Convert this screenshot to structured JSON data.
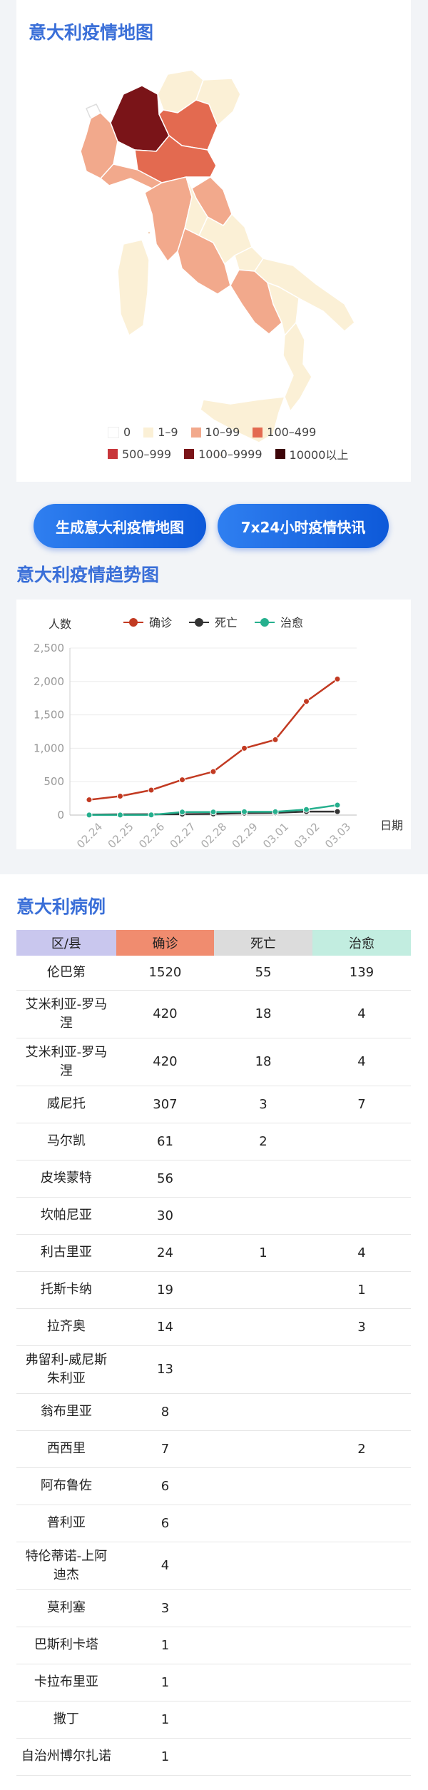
{
  "map_section": {
    "title": "意大利疫情地图",
    "legend": [
      {
        "label": "0",
        "color": "#ffffff"
      },
      {
        "label": "1–9",
        "color": "#fbf0d6"
      },
      {
        "label": "10–99",
        "color": "#f2a98c"
      },
      {
        "label": "100–499",
        "color": "#e36a50"
      },
      {
        "label": "500–999",
        "color": "#c8363a"
      },
      {
        "label": "1000–9999",
        "color": "#7a1418"
      },
      {
        "label": "10000以上",
        "color": "#3d0509"
      }
    ]
  },
  "buttons": {
    "map_button": "生成意大利疫情地图",
    "news_button": "7x24小时疫情快讯"
  },
  "trend_section": {
    "title": "意大利疫情趋势图"
  },
  "chart_data": {
    "type": "line",
    "ylabel": "人数",
    "xlabel": "日期",
    "categories": [
      "02.24",
      "02.25",
      "02.26",
      "02.27",
      "02.28",
      "02.29",
      "03.01",
      "03.02",
      "03.03"
    ],
    "ylim": [
      0,
      2500
    ],
    "yticks": [
      "2,500",
      "2,000",
      "1,500",
      "1,000",
      "500",
      "0"
    ],
    "legend_position": "top",
    "series": [
      {
        "name": "确诊",
        "color": "#c23a22",
        "values": [
          229,
          283,
          374,
          528,
          650,
          1000,
          1128,
          1701,
          2036
        ]
      },
      {
        "name": "死亡",
        "color": "#333333",
        "values": [
          7,
          11,
          12,
          14,
          17,
          29,
          34,
          52,
          52
        ]
      },
      {
        "name": "治愈",
        "color": "#26b08e",
        "values": [
          1,
          1,
          3,
          45,
          46,
          50,
          50,
          83,
          149
        ]
      }
    ]
  },
  "cases_section": {
    "title": "意大利病例",
    "headers": {
      "region": "区/县",
      "confirmed": "确诊",
      "deaths": "死亡",
      "cured": "治愈"
    },
    "header_colors": {
      "region": "#c9c7ee",
      "confirmed": "#f08c6f",
      "deaths": "#dcdcdc",
      "cured": "#c2ede0"
    },
    "rows": [
      {
        "region": "伦巴第",
        "confirmed": "1520",
        "deaths": "55",
        "cured": "139"
      },
      {
        "region": "艾米利亚-罗马涅",
        "confirmed": "420",
        "deaths": "18",
        "cured": "4"
      },
      {
        "region": "艾米利亚-罗马涅",
        "confirmed": "420",
        "deaths": "18",
        "cured": "4"
      },
      {
        "region": "威尼托",
        "confirmed": "307",
        "deaths": "3",
        "cured": "7"
      },
      {
        "region": "马尔凯",
        "confirmed": "61",
        "deaths": "2",
        "cured": ""
      },
      {
        "region": "皮埃蒙特",
        "confirmed": "56",
        "deaths": "",
        "cured": ""
      },
      {
        "region": "坎帕尼亚",
        "confirmed": "30",
        "deaths": "",
        "cured": ""
      },
      {
        "region": "利古里亚",
        "confirmed": "24",
        "deaths": "1",
        "cured": "4"
      },
      {
        "region": "托斯卡纳",
        "confirmed": "19",
        "deaths": "",
        "cured": "1"
      },
      {
        "region": "拉齐奥",
        "confirmed": "14",
        "deaths": "",
        "cured": "3"
      },
      {
        "region": "弗留利-威尼斯朱利亚",
        "confirmed": "13",
        "deaths": "",
        "cured": ""
      },
      {
        "region": "翁布里亚",
        "confirmed": "8",
        "deaths": "",
        "cured": ""
      },
      {
        "region": "西西里",
        "confirmed": "7",
        "deaths": "",
        "cured": "2"
      },
      {
        "region": "阿布鲁佐",
        "confirmed": "6",
        "deaths": "",
        "cured": ""
      },
      {
        "region": "普利亚",
        "confirmed": "6",
        "deaths": "",
        "cured": ""
      },
      {
        "region": "特伦蒂诺-上阿迪杰",
        "confirmed": "4",
        "deaths": "",
        "cured": ""
      },
      {
        "region": "莫利塞",
        "confirmed": "3",
        "deaths": "",
        "cured": ""
      },
      {
        "region": "巴斯利卡塔",
        "confirmed": "1",
        "deaths": "",
        "cured": ""
      },
      {
        "region": "卡拉布里亚",
        "confirmed": "1",
        "deaths": "",
        "cured": ""
      },
      {
        "region": "撒丁",
        "confirmed": "1",
        "deaths": "",
        "cured": ""
      },
      {
        "region": "自治州博尔扎诺",
        "confirmed": "1",
        "deaths": "",
        "cured": ""
      }
    ]
  }
}
